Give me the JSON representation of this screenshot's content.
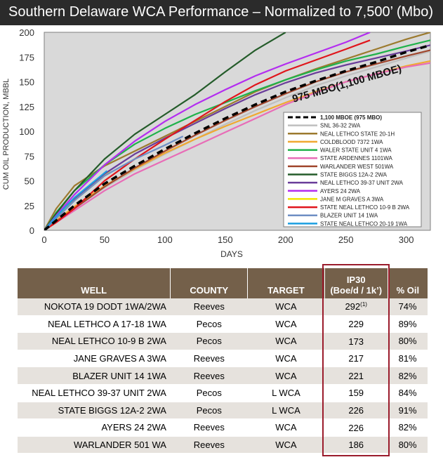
{
  "title": "Southern Delaware WCA Performance – Normalized to 7,500’ (Mbo)",
  "chart_data": {
    "type": "line",
    "xlabel": "DAYS",
    "ylabel": "CUM OIL PRODUCTION, MBBL",
    "xlim": [
      0,
      320
    ],
    "ylim": [
      0,
      200
    ],
    "xticks": [
      "0",
      "50",
      "100",
      "150",
      "200",
      "250",
      "300"
    ],
    "yticks": [
      "0",
      "25",
      "50",
      "75",
      "100",
      "125",
      "150",
      "175",
      "200"
    ],
    "grid": false,
    "legend_position": "bottom-right",
    "annotation": "975 MBO(1,100 MBOE)",
    "series": [
      {
        "name": "1,100 MBOE (975 MBO)",
        "color": "#000000",
        "dashed": true,
        "x": [
          0,
          10,
          25,
          50,
          75,
          100,
          125,
          150,
          175,
          200,
          225,
          250,
          275,
          300,
          320
        ],
        "y": [
          0,
          10,
          25,
          47,
          65,
          82,
          98,
          113,
          127,
          140,
          151,
          161,
          170,
          180,
          187
        ]
      },
      {
        "name": "SNL 36-32 2WA",
        "color": "#bfbfbf",
        "x": [
          0,
          10,
          25,
          50,
          75,
          100,
          125,
          150,
          175,
          200,
          225,
          250,
          275,
          300,
          320
        ],
        "y": [
          0,
          9,
          22,
          43,
          61,
          77,
          92,
          107,
          121,
          134,
          146,
          156,
          165,
          174,
          181
        ]
      },
      {
        "name": "NEAL LETHCO STATE 20-1H",
        "color": "#9c7a2e",
        "x": [
          0,
          10,
          25,
          50,
          75,
          100,
          125,
          150,
          175,
          200,
          225,
          250,
          275,
          300,
          320
        ],
        "y": [
          0,
          22,
          45,
          65,
          80,
          95,
          110,
          125,
          140,
          152,
          163,
          173,
          183,
          193,
          200
        ]
      },
      {
        "name": "COLDBLOOD 7372 1WA",
        "color": "#f0a830",
        "x": [
          0,
          10,
          25,
          50,
          75,
          100,
          125,
          150,
          175,
          200,
          225,
          250,
          275,
          300,
          320
        ],
        "y": [
          0,
          10,
          24,
          45,
          62,
          78,
          92,
          105,
          117,
          129,
          140,
          150,
          158,
          166,
          171
        ]
      },
      {
        "name": "WALER STATE UNIT 4 1WA",
        "color": "#1fb24a",
        "x": [
          0,
          10,
          25,
          50,
          75,
          100,
          125,
          150,
          175,
          200,
          225,
          250,
          275,
          300,
          320
        ],
        "y": [
          0,
          18,
          40,
          66,
          87,
          103,
          117,
          129,
          141,
          152,
          162,
          171,
          178,
          186,
          192
        ]
      },
      {
        "name": "STATE ARDENNES 1101WA",
        "color": "#e86db7",
        "x": [
          0,
          10,
          25,
          50,
          75,
          100,
          125,
          150,
          175,
          200,
          225,
          250,
          275,
          300,
          320
        ],
        "y": [
          0,
          8,
          20,
          40,
          57,
          71,
          85,
          99,
          113,
          127,
          139,
          150,
          158,
          165,
          169
        ]
      },
      {
        "name": "WARLANDER WEST 501WA",
        "color": "#a0462d",
        "x": [
          0,
          10,
          25,
          50,
          75,
          100,
          125,
          150,
          175,
          200,
          225,
          250,
          275,
          300,
          320
        ],
        "y": [
          0,
          9,
          22,
          44,
          63,
          80,
          96,
          111,
          125,
          138,
          150,
          160,
          168,
          176,
          182
        ]
      },
      {
        "name": "STATE BIGGS 12A-2 2WA",
        "color": "#245c2a",
        "x": [
          0,
          10,
          25,
          50,
          75,
          100,
          125,
          150,
          175,
          200
        ],
        "y": [
          0,
          17,
          40,
          72,
          97,
          117,
          137,
          160,
          182,
          200
        ]
      },
      {
        "name": "NEAL LETHCO 39-37 UNIT 2WA",
        "color": "#6a3d9a",
        "x": [
          0,
          10,
          25,
          50,
          75,
          100,
          125,
          150,
          175,
          200,
          225,
          250,
          275,
          300,
          320
        ],
        "y": [
          0,
          13,
          32,
          57,
          77,
          93,
          108,
          123,
          137,
          149,
          159,
          167,
          174,
          181,
          187
        ]
      },
      {
        "name": "AYERS 24 2WA",
        "color": "#b32df0",
        "x": [
          0,
          10,
          25,
          50,
          75,
          100,
          125,
          150,
          175,
          200,
          225,
          250,
          270
        ],
        "y": [
          0,
          15,
          36,
          66,
          90,
          110,
          127,
          142,
          156,
          168,
          179,
          190,
          200
        ]
      },
      {
        "name": "JANE M GRAVES A 3WA",
        "color": "#f0e600",
        "x": [
          0,
          10,
          25,
          50,
          55
        ],
        "y": [
          0,
          13,
          30,
          55,
          59
        ]
      },
      {
        "name": "STATE NEAL LETHCO 10-9 B 2WA",
        "color": "#e0151b",
        "x": [
          0,
          10,
          25,
          50,
          75,
          100,
          125,
          150,
          175,
          200,
          225,
          250,
          270
        ],
        "y": [
          0,
          8,
          22,
          50,
          72,
          92,
          111,
          130,
          147,
          161,
          172,
          183,
          192
        ]
      },
      {
        "name": "BLAZER UNIT 14 1WA",
        "color": "#6f8fc4",
        "x": [
          0,
          10,
          25,
          50,
          75,
          100,
          115
        ],
        "y": [
          0,
          12,
          30,
          55,
          72,
          86,
          95
        ]
      },
      {
        "name": "STATE NEAL LETHCO 20-19 1WA",
        "color": "#1c9fe0",
        "x": [
          0,
          10,
          25,
          50,
          52
        ],
        "y": [
          0,
          14,
          33,
          58,
          60
        ]
      }
    ]
  },
  "table": {
    "headers": {
      "well": "WELL",
      "county": "COUNTY",
      "target": "TARGET",
      "ip30_line1": "IP30",
      "ip30_line2": "(Boe/d / 1k’)",
      "oil": "% Oil"
    },
    "rows": [
      {
        "well": "NOKOTA 19 DODT 1WA/2WA",
        "county": "Reeves",
        "target": "WCA",
        "ip30": "292",
        "ip30_note": "(1)",
        "oil": "74%"
      },
      {
        "well": "NEAL LETHCO A 17-18 1WA",
        "county": "Pecos",
        "target": "WCA",
        "ip30": "229",
        "ip30_note": "",
        "oil": "89%"
      },
      {
        "well": "NEAL LETHCO 10-9 B 2WA",
        "county": "Pecos",
        "target": "WCA",
        "ip30": "173",
        "ip30_note": "",
        "oil": "80%"
      },
      {
        "well": "JANE GRAVES A 3WA",
        "county": "Reeves",
        "target": "WCA",
        "ip30": "217",
        "ip30_note": "",
        "oil": "81%"
      },
      {
        "well": "BLAZER UNIT 14 1WA",
        "county": "Reeves",
        "target": "WCA",
        "ip30": "221",
        "ip30_note": "",
        "oil": "82%"
      },
      {
        "well": "NEAL LETHCO 39-37 UNIT 2WA",
        "county": "Pecos",
        "target": "L WCA",
        "ip30": "159",
        "ip30_note": "",
        "oil": "84%"
      },
      {
        "well": "STATE BIGGS 12A-2 2WA",
        "county": "Pecos",
        "target": "L WCA",
        "ip30": "226",
        "ip30_note": "",
        "oil": "91%"
      },
      {
        "well": "AYERS 24 2WA",
        "county": "Reeves",
        "target": "WCA",
        "ip30": "226",
        "ip30_note": "",
        "oil": "82%"
      },
      {
        "well": "WARLANDER 501 WA",
        "county": "Reeves",
        "target": "WCA",
        "ip30": "186",
        "ip30_note": "",
        "oil": "80%"
      }
    ]
  },
  "colors": {
    "title_bg": "#2b2b2b",
    "plot_bg": "#d9d9d9",
    "table_header": "#74604a",
    "table_stripe": "#e6e2dd",
    "highlight": "#9b1c2c"
  }
}
